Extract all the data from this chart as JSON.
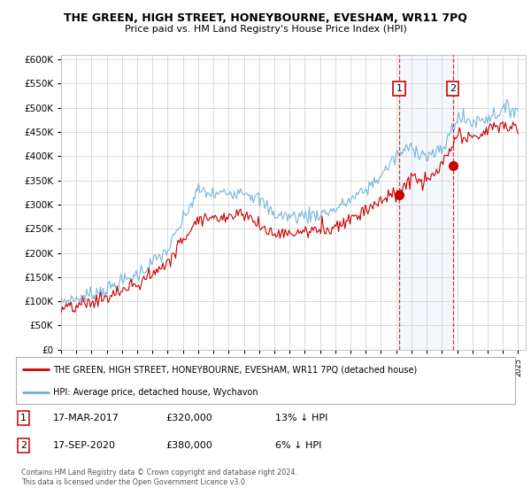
{
  "title": "THE GREEN, HIGH STREET, HONEYBOURNE, EVESHAM, WR11 7PQ",
  "subtitle": "Price paid vs. HM Land Registry's House Price Index (HPI)",
  "hpi_color": "#6baed6",
  "price_color": "#cc0000",
  "marker1_date": "17-MAR-2017",
  "marker1_value": 320000,
  "marker1_hpi_pct": "13%",
  "marker2_date": "17-SEP-2020",
  "marker2_value": 380000,
  "marker2_hpi_pct": "6%",
  "legend_label_price": "THE GREEN, HIGH STREET, HONEYBOURNE, EVESHAM, WR11 7PQ (detached house)",
  "legend_label_hpi": "HPI: Average price, detached house, Wychavon",
  "footer": "Contains HM Land Registry data © Crown copyright and database right 2024.\nThis data is licensed under the Open Government Licence v3.0.",
  "ylim": [
    0,
    600000
  ],
  "yticks": [
    0,
    50000,
    100000,
    150000,
    200000,
    250000,
    300000,
    350000,
    400000,
    450000,
    500000,
    550000,
    600000
  ],
  "hpi_keypoints_x": [
    1995,
    1996,
    1998,
    2000,
    2002,
    2004,
    2005,
    2007,
    2008,
    2009,
    2010,
    2012,
    2013,
    2014,
    2015,
    2016,
    2017,
    2018,
    2019,
    2020,
    2021,
    2022,
    2023,
    2024,
    2025
  ],
  "hpi_keypoints_y": [
    100000,
    105000,
    125000,
    155000,
    205000,
    330000,
    320000,
    330000,
    310000,
    280000,
    275000,
    280000,
    290000,
    310000,
    330000,
    360000,
    400000,
    420000,
    400000,
    410000,
    480000,
    470000,
    480000,
    495000,
    500000
  ],
  "price_keypoints_x": [
    1995,
    1996,
    1998,
    2000,
    2002,
    2004,
    2005,
    2007,
    2008,
    2009,
    2010,
    2012,
    2013,
    2014,
    2015,
    2016,
    2017,
    2018,
    2019,
    2020,
    2021,
    2022,
    2023,
    2024,
    2025
  ],
  "price_keypoints_y": [
    82000,
    88000,
    108000,
    135000,
    180000,
    275000,
    270000,
    285000,
    255000,
    240000,
    240000,
    248000,
    255000,
    272000,
    290000,
    310000,
    320000,
    355000,
    345000,
    380000,
    440000,
    435000,
    455000,
    465000,
    455000
  ],
  "marker1_year": 2017.21,
  "marker2_year": 2020.71,
  "noise_seed_hpi": 7,
  "noise_seed_price": 13,
  "noise_scale_hpi": 8000,
  "noise_scale_price": 8000
}
